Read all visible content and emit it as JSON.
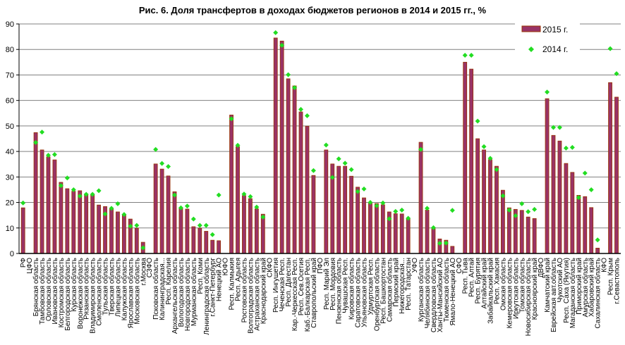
{
  "chart_data": {
    "type": "bar",
    "title": "Рис. 6. Доля трансфертов в доходах бюджетов регионов в 2014 и 2015 гг., %",
    "xlabel": "",
    "ylabel": "",
    "ylim": [
      0,
      90
    ],
    "yticks": [
      0,
      10,
      20,
      30,
      40,
      50,
      60,
      70,
      80,
      90
    ],
    "grid": true,
    "legend_position": "top-right",
    "categories": [
      "РФ",
      "ЦФО",
      "Брянская область",
      "Тамбовская область",
      "Орловская область",
      "Ивановская область",
      "Костромская область",
      "Белгородская область",
      "Курская область",
      "Воронежская область",
      "Рязанская область",
      "Владимирская область",
      "Смоленская область",
      "Тульская область",
      "Тверская область",
      "Липецкая область",
      "Калужская область",
      "Ярославская область",
      "Московская область",
      "г.Москва",
      "СЗФО",
      "Псковская область",
      "Калининградская...",
      "Респ. Карелия",
      "Архангельская область",
      "Вологодская область",
      "Новгородская область",
      "Мурманская область",
      "Респ. Коми",
      "Ленинградская область",
      "г.Санкт-Петербург",
      "Ненецкий АО",
      "ЮФО",
      "Респ. Калмыкия",
      "Респ. Адыгея",
      "Ростовская область",
      "Волгоградская область",
      "Астраханская область",
      "Краснодарский край",
      "СКФО",
      "Респ. Ингушетия",
      "Чеченская Респ.",
      "Респ. Дагестан",
      "Кар.-Черкесская Респ.",
      "Респ. Сев.Осетия",
      "Каб.-Балкарская Респ.",
      "Ставропольский край",
      "ПФО",
      "Респ. Марий Эл",
      "Респ. Мордовия",
      "Пензенская область",
      "Чувашская Респ.",
      "Кировская область",
      "Саратовская область",
      "Ульяновская область",
      "Удмуртская Респ.",
      "Оренбургская область",
      "Респ. Башкортостан",
      "Самарская область",
      "Пермский край",
      "Нижегородская...",
      "Респ. Татарстан",
      "УФО",
      "Курганская область",
      "Челябинская область",
      "Свердловская область",
      "Ханты-Мансийский АО",
      "Тюменская область",
      "Ямало-Ненецкий АО",
      "СФО",
      "Респ. Тыва",
      "Респ. Алтай",
      "Респ. Бурятия",
      "Алтайский край",
      "Забайкальский край",
      "Респ. Хакасия",
      "Омская область",
      "Кемеровская область",
      "Иркутская область",
      "Томская область",
      "Новосибирская область",
      "Красноярский край",
      "ДВФО",
      "Камчатский край",
      "Еврейская авт.область",
      "Чукотский АО",
      "Респ. Саха (Якутия)",
      "Магаданская область",
      "Приморский край",
      "Амурская область",
      "Хабаровский край",
      "Сахалинская область",
      "КФО",
      "Респ. Крым",
      "г.Севастополь"
    ],
    "series": [
      {
        "name": "2015 г.",
        "type": "bar",
        "color": "#993366",
        "values": [
          17.9,
          null,
          47.4,
          40.6,
          37.9,
          36.7,
          27.9,
          25.4,
          24.4,
          24.6,
          23.3,
          23.0,
          19.0,
          18.4,
          17.5,
          16.3,
          15.2,
          13.5,
          9.9,
          4.4,
          null,
          35.1,
          33.1,
          30.4,
          24.2,
          17.9,
          17.4,
          10.5,
          9.9,
          8.7,
          5.2,
          5.0,
          null,
          54.3,
          41.9,
          22.7,
          21.5,
          17.5,
          15.4,
          null,
          84.5,
          83.3,
          68.5,
          65.7,
          55.5,
          49.9,
          30.6,
          null,
          40.6,
          35.1,
          34.2,
          34.2,
          30.3,
          26.0,
          21.8,
          20.0,
          19.6,
          19.1,
          16.3,
          15.6,
          15.5,
          13.8,
          null,
          43.6,
          17.0,
          9.7,
          5.7,
          5.2,
          2.8,
          null,
          75.0,
          72.3,
          45.0,
          40.6,
          36.8,
          34.2,
          24.8,
          17.9,
          17.3,
          16.9,
          14.3,
          13.7,
          null,
          60.7,
          46.3,
          44.1,
          35.3,
          31.8,
          22.8,
          22.3,
          18.0,
          2.1,
          null,
          67.0,
          61.3
        ]
      },
      {
        "name": "2014 г.",
        "type": "scatter",
        "color": "#22dd22",
        "values": [
          19.8,
          null,
          43.5,
          47.6,
          38.5,
          38.8,
          26.6,
          29.6,
          25.0,
          22.5,
          23.2,
          23.2,
          24.6,
          15.5,
          17.7,
          19.5,
          15.3,
          10.7,
          11.0,
          2.2,
          null,
          40.8,
          35.3,
          34.1,
          22.9,
          17.9,
          18.6,
          13.5,
          11.0,
          11.0,
          7.4,
          22.9,
          null,
          52.8,
          42.4,
          23.3,
          22.3,
          18.2,
          14.3,
          null,
          86.6,
          81.6,
          70.1,
          65.0,
          56.5,
          54.0,
          32.5,
          null,
          42.5,
          29.8,
          37.1,
          35.4,
          32.9,
          24.3,
          25.3,
          20.0,
          18.7,
          19.8,
          13.6,
          16.5,
          17.0,
          13.8,
          null,
          40.8,
          17.7,
          10.1,
          4.0,
          4.1,
          16.9,
          null,
          77.7,
          77.7,
          51.9,
          41.9,
          37.3,
          32.9,
          22.6,
          17.0,
          14.8,
          19.5,
          16.4,
          17.3,
          null,
          63.3,
          49.4,
          49.4,
          41.3,
          41.6,
          21.9,
          31.5,
          25.0,
          5.3,
          null,
          80.3,
          70.5
        ]
      }
    ]
  }
}
